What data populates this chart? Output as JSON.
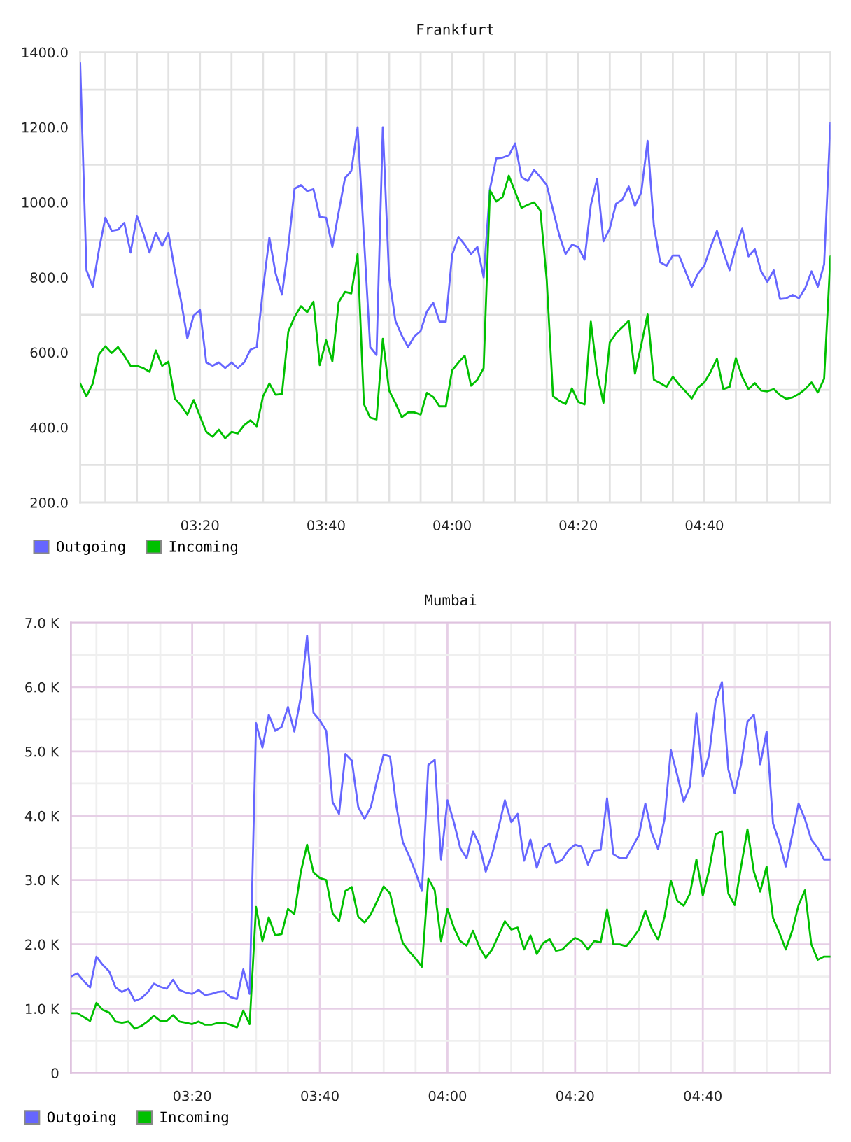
{
  "chart_data": [
    {
      "type": "line",
      "title": "Frankfurt",
      "x": [
        3.0167,
        3.0333,
        3.05,
        3.0667,
        3.0833,
        3.1,
        3.1167,
        3.1333,
        3.15,
        3.1667,
        3.1833,
        3.2,
        3.2167,
        3.2333,
        3.25,
        3.2667,
        3.2833,
        3.3,
        3.3167,
        3.3333,
        3.35,
        3.3667,
        3.3833,
        3.4,
        3.4167,
        3.4333,
        3.45,
        3.4667,
        3.4833,
        3.5,
        3.5167,
        3.5333,
        3.55,
        3.5667,
        3.5833,
        3.6,
        3.6167,
        3.6333,
        3.65,
        3.6667,
        3.6833,
        3.7,
        3.7167,
        3.7333,
        3.75,
        3.7667,
        3.7833,
        3.8,
        3.8167,
        3.8333,
        3.85,
        3.8667,
        3.8833,
        3.9,
        3.9167,
        3.9333,
        3.95,
        3.9667,
        3.9833,
        4.0,
        4.0167,
        4.0333,
        4.05,
        4.0667,
        4.0833,
        4.1,
        4.1167,
        4.1333,
        4.15,
        4.1667,
        4.1833,
        4.2,
        4.2167,
        4.2333,
        4.25,
        4.2667,
        4.2833,
        4.3,
        4.3167,
        4.3333,
        4.35,
        4.3667,
        4.3833,
        4.4,
        4.4167,
        4.4333,
        4.45,
        4.4667,
        4.4833,
        4.5,
        4.5167,
        4.5333,
        4.55,
        4.5667,
        4.5833,
        4.6,
        4.6167,
        4.6333,
        4.65,
        4.6667,
        4.6833,
        4.7,
        4.7167,
        4.7333,
        4.75,
        4.7667,
        4.7833,
        4.8,
        4.8167,
        4.8333,
        4.85,
        4.8667,
        4.8833,
        4.9,
        4.9167,
        4.9333,
        4.95,
        4.9667,
        4.9833,
        5.0
      ],
      "series": [
        {
          "name": "Outgoing",
          "color": "#6666ff",
          "values": [
            1371,
            819,
            775,
            875,
            959,
            924,
            927,
            945,
            866,
            964,
            918,
            866,
            918,
            884,
            918,
            819,
            737,
            637,
            698,
            713,
            573,
            564,
            573,
            558,
            573,
            558,
            573,
            607,
            614,
            769,
            906,
            810,
            754,
            881,
            1036,
            1046,
            1030,
            1035,
            961,
            959,
            881,
            974,
            1065,
            1083,
            1200,
            906,
            614,
            593,
            1200,
            800,
            684,
            645,
            614,
            642,
            657,
            709,
            732,
            682,
            682,
            860,
            908,
            887,
            862,
            881,
            800,
            1036,
            1117,
            1119,
            1125,
            1157,
            1067,
            1057,
            1086,
            1067,
            1046,
            980,
            912,
            862,
            887,
            881,
            847,
            993,
            1063,
            896,
            930,
            996,
            1007,
            1042,
            990,
            1027,
            1164,
            937,
            840,
            831,
            858,
            858,
            816,
            775,
            810,
            831,
            881,
            924,
            868,
            819,
            881,
            930,
            856,
            875,
            816,
            788,
            819,
            742,
            744,
            753,
            744,
            771,
            816,
            775,
            835,
            1212
          ]
        },
        {
          "name": "Incoming",
          "color": "#00c000",
          "values": [
            517,
            483,
            517,
            595,
            616,
            598,
            614,
            591,
            564,
            564,
            558,
            548,
            605,
            564,
            575,
            477,
            458,
            434,
            473,
            430,
            388,
            375,
            394,
            371,
            388,
            384,
            406,
            419,
            403,
            483,
            517,
            487,
            489,
            655,
            694,
            723,
            707,
            735,
            566,
            632,
            576,
            734,
            761,
            757,
            862,
            462,
            426,
            421,
            636,
            498,
            465,
            427,
            440,
            440,
            434,
            492,
            481,
            456,
            456,
            552,
            573,
            591,
            511,
            527,
            558,
            1032,
            1002,
            1014,
            1071,
            1027,
            985,
            993,
            1000,
            978,
            794,
            483,
            471,
            462,
            504,
            468,
            461,
            682,
            543,
            465,
            626,
            651,
            667,
            684,
            543,
            620,
            701,
            527,
            518,
            508,
            535,
            514,
            496,
            477,
            506,
            520,
            548,
            583,
            502,
            508,
            585,
            535,
            502,
            518,
            498,
            496,
            502,
            486,
            476,
            480,
            489,
            502,
            520,
            493,
            530,
            856
          ]
        }
      ],
      "xlim": [
        3.0167,
        5.0
      ],
      "ylim": [
        200,
        1400
      ],
      "xticks": [
        {
          "value": 3.0833,
          "label": null
        },
        {
          "value": 3.1667,
          "label": null
        },
        {
          "value": 3.25,
          "label": null
        },
        {
          "value": 3.3333,
          "label": "03:20"
        },
        {
          "value": 3.4167,
          "label": null
        },
        {
          "value": 3.5,
          "label": null
        },
        {
          "value": 3.5833,
          "label": null
        },
        {
          "value": 3.6667,
          "label": "03:40"
        },
        {
          "value": 3.75,
          "label": null
        },
        {
          "value": 3.8333,
          "label": null
        },
        {
          "value": 3.9167,
          "label": null
        },
        {
          "value": 4,
          "label": "04:00"
        },
        {
          "value": 4.0833,
          "label": null
        },
        {
          "value": 4.1667,
          "label": null
        },
        {
          "value": 4.25,
          "label": null
        },
        {
          "value": 4.3333,
          "label": "04:20"
        },
        {
          "value": 4.4167,
          "label": null
        },
        {
          "value": 4.5,
          "label": null
        },
        {
          "value": 4.5833,
          "label": null
        },
        {
          "value": 4.6667,
          "label": "04:40"
        },
        {
          "value": 4.75,
          "label": null
        },
        {
          "value": 4.8333,
          "label": null
        },
        {
          "value": 4.9167,
          "label": null
        }
      ],
      "yticks": [
        {
          "value": 200,
          "label": "200.0"
        },
        {
          "value": 300,
          "label": null
        },
        {
          "value": 400,
          "label": "400.0"
        },
        {
          "value": 500,
          "label": null
        },
        {
          "value": 600,
          "label": "600.0"
        },
        {
          "value": 700,
          "label": null
        },
        {
          "value": 800,
          "label": "800.0"
        },
        {
          "value": 900,
          "label": null
        },
        {
          "value": 1000,
          "label": "1000.0"
        },
        {
          "value": 1100,
          "label": null
        },
        {
          "value": 1200,
          "label": "1200.0"
        },
        {
          "value": 1300,
          "label": null
        },
        {
          "value": 1400,
          "label": "1400.0"
        }
      ],
      "grid": true,
      "legend": "bottom left"
    },
    {
      "type": "line",
      "title": "Mumbai",
      "x": [
        3.0167,
        3.0333,
        3.05,
        3.0667,
        3.0833,
        3.1,
        3.1167,
        3.1333,
        3.15,
        3.1667,
        3.1833,
        3.2,
        3.2167,
        3.2333,
        3.25,
        3.2667,
        3.2833,
        3.3,
        3.3167,
        3.3333,
        3.35,
        3.3667,
        3.3833,
        3.4,
        3.4167,
        3.4333,
        3.45,
        3.4667,
        3.4833,
        3.5,
        3.5167,
        3.5333,
        3.55,
        3.5667,
        3.5833,
        3.6,
        3.6167,
        3.6333,
        3.65,
        3.6667,
        3.6833,
        3.7,
        3.7167,
        3.7333,
        3.75,
        3.7667,
        3.7833,
        3.8,
        3.8167,
        3.8333,
        3.85,
        3.8667,
        3.8833,
        3.9,
        3.9167,
        3.9333,
        3.95,
        3.9667,
        3.9833,
        4.0,
        4.0167,
        4.0333,
        4.05,
        4.0667,
        4.0833,
        4.1,
        4.1167,
        4.1333,
        4.15,
        4.1667,
        4.1833,
        4.2,
        4.2167,
        4.2333,
        4.25,
        4.2667,
        4.2833,
        4.3,
        4.3167,
        4.3333,
        4.35,
        4.3667,
        4.3833,
        4.4,
        4.4167,
        4.4333,
        4.45,
        4.4667,
        4.4833,
        4.5,
        4.5167,
        4.5333,
        4.55,
        4.5667,
        4.5833,
        4.6,
        4.6167,
        4.6333,
        4.65,
        4.6667,
        4.6833,
        4.7,
        4.7167,
        4.7333,
        4.75,
        4.7667,
        4.7833,
        4.8,
        4.8167,
        4.8333,
        4.85,
        4.8667,
        4.8833,
        4.9,
        4.9167,
        4.9333,
        4.95,
        4.9667,
        4.9833,
        5.0
      ],
      "series": [
        {
          "name": "Outgoing",
          "color": "#6666ff",
          "values": [
            1500,
            1550,
            1430,
            1330,
            1810,
            1680,
            1580,
            1330,
            1260,
            1310,
            1120,
            1160,
            1250,
            1390,
            1340,
            1310,
            1450,
            1290,
            1250,
            1230,
            1290,
            1210,
            1230,
            1260,
            1270,
            1180,
            1150,
            1610,
            1230,
            5440,
            5060,
            5570,
            5320,
            5380,
            5690,
            5310,
            5840,
            6800,
            5600,
            5480,
            5320,
            4210,
            4030,
            4960,
            4860,
            4140,
            3950,
            4140,
            4570,
            4950,
            4920,
            4140,
            3590,
            3370,
            3120,
            2830,
            4790,
            4870,
            3320,
            4240,
            3900,
            3500,
            3340,
            3760,
            3550,
            3130,
            3400,
            3810,
            4240,
            3900,
            4030,
            3300,
            3630,
            3190,
            3500,
            3570,
            3260,
            3320,
            3470,
            3550,
            3520,
            3240,
            3460,
            3470,
            4270,
            3400,
            3340,
            3340,
            3520,
            3700,
            4190,
            3740,
            3480,
            3950,
            5020,
            4630,
            4220,
            4460,
            5590,
            4610,
            4950,
            5780,
            6080,
            4720,
            4350,
            4800,
            5460,
            5570,
            4800,
            5310,
            3880,
            3590,
            3210,
            3700,
            4190,
            3950,
            3630,
            3500,
            3320,
            3320
          ]
        },
        {
          "name": "Incoming",
          "color": "#00c000",
          "values": [
            930,
            930,
            870,
            810,
            1090,
            980,
            940,
            800,
            780,
            800,
            690,
            730,
            800,
            890,
            810,
            810,
            900,
            800,
            780,
            760,
            800,
            750,
            750,
            780,
            780,
            750,
            710,
            970,
            760,
            2580,
            2050,
            2420,
            2140,
            2160,
            2550,
            2470,
            3120,
            3550,
            3120,
            3030,
            3000,
            2480,
            2360,
            2830,
            2890,
            2430,
            2340,
            2470,
            2680,
            2900,
            2790,
            2360,
            2020,
            1890,
            1780,
            1650,
            3020,
            2840,
            2050,
            2550,
            2260,
            2050,
            1980,
            2210,
            1960,
            1790,
            1920,
            2140,
            2360,
            2230,
            2260,
            1920,
            2140,
            1850,
            2020,
            2080,
            1900,
            1920,
            2020,
            2100,
            2050,
            1920,
            2050,
            2030,
            2540,
            2000,
            2000,
            1970,
            2090,
            2230,
            2520,
            2250,
            2070,
            2430,
            2990,
            2680,
            2600,
            2790,
            3320,
            2760,
            3160,
            3710,
            3760,
            2790,
            2610,
            3210,
            3790,
            3130,
            2820,
            3210,
            2410,
            2180,
            1920,
            2210,
            2610,
            2840,
            2000,
            1760,
            1810,
            1810
          ]
        }
      ],
      "xlim": [
        3.0167,
        5.0
      ],
      "ylim": [
        0,
        7000
      ],
      "xticks": [
        {
          "value": 3.0833,
          "label": null
        },
        {
          "value": 3.1667,
          "label": null
        },
        {
          "value": 3.25,
          "label": null
        },
        {
          "value": 3.3333,
          "label": "03:20"
        },
        {
          "value": 3.4167,
          "label": null
        },
        {
          "value": 3.5,
          "label": null
        },
        {
          "value": 3.5833,
          "label": null
        },
        {
          "value": 3.6667,
          "label": "03:40"
        },
        {
          "value": 3.75,
          "label": null
        },
        {
          "value": 3.8333,
          "label": null
        },
        {
          "value": 3.9167,
          "label": null
        },
        {
          "value": 4,
          "label": "04:00"
        },
        {
          "value": 4.0833,
          "label": null
        },
        {
          "value": 4.1667,
          "label": null
        },
        {
          "value": 4.25,
          "label": null
        },
        {
          "value": 4.3333,
          "label": "04:20"
        },
        {
          "value": 4.4167,
          "label": null
        },
        {
          "value": 4.5,
          "label": null
        },
        {
          "value": 4.5833,
          "label": null
        },
        {
          "value": 4.6667,
          "label": "04:40"
        },
        {
          "value": 4.75,
          "label": null
        },
        {
          "value": 4.8333,
          "label": null
        },
        {
          "value": 4.9167,
          "label": null
        }
      ],
      "yticks": [
        0,
        {
          "value": 500,
          "label": null
        },
        {
          "value": 1000,
          "label": "1.0 K"
        },
        {
          "value": 1500,
          "label": null
        },
        {
          "value": 2000,
          "label": "2.0 K"
        },
        {
          "value": 2500,
          "label": null
        },
        {
          "value": 3000,
          "label": "3.0 K"
        },
        {
          "value": 3500,
          "label": null
        },
        {
          "value": 4000,
          "label": "4.0 K"
        },
        {
          "value": 4500,
          "label": null
        },
        {
          "value": 5000,
          "label": "5.0 K"
        },
        {
          "value": 5500,
          "label": null
        },
        {
          "value": 6000,
          "label": "6.0 K"
        },
        {
          "value": 6500,
          "label": null
        },
        {
          "value": 7000,
          "label": "7.0 K"
        }
      ],
      "grid": true,
      "legend": "bottom left"
    }
  ]
}
